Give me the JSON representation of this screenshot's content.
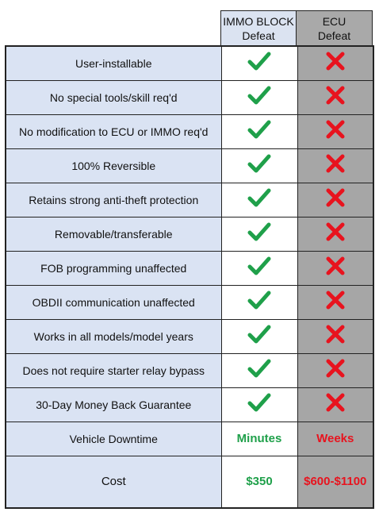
{
  "columns": [
    {
      "line1": "IMMO BLOCK",
      "line2": "Defeat"
    },
    {
      "line1": "ECU",
      "line2": "Defeat"
    }
  ],
  "features": [
    "User-installable",
    "No special tools/skill req'd",
    "No modification to ECU or IMMO req'd",
    "100% Reversible",
    "Retains strong anti-theft protection",
    "Removable/transferable",
    "FOB programming unaffected",
    "OBDII communication unaffected",
    "Works in all models/model years",
    "Does not require starter relay bypass",
    "30-Day Money Back Guarantee"
  ],
  "downtime": {
    "label": "Vehicle Downtime",
    "immo": "Minutes",
    "ecu": "Weeks"
  },
  "cost": {
    "label": "Cost",
    "immo": "$350",
    "ecu": "$600-$1100"
  },
  "colors": {
    "check": "#1fa04a",
    "cross": "#e8131e",
    "label_bg": "#dae3f3",
    "ecu_bg": "#a6a6a6"
  },
  "icons": {
    "immo": "check-icon",
    "ecu": "cross-icon"
  }
}
